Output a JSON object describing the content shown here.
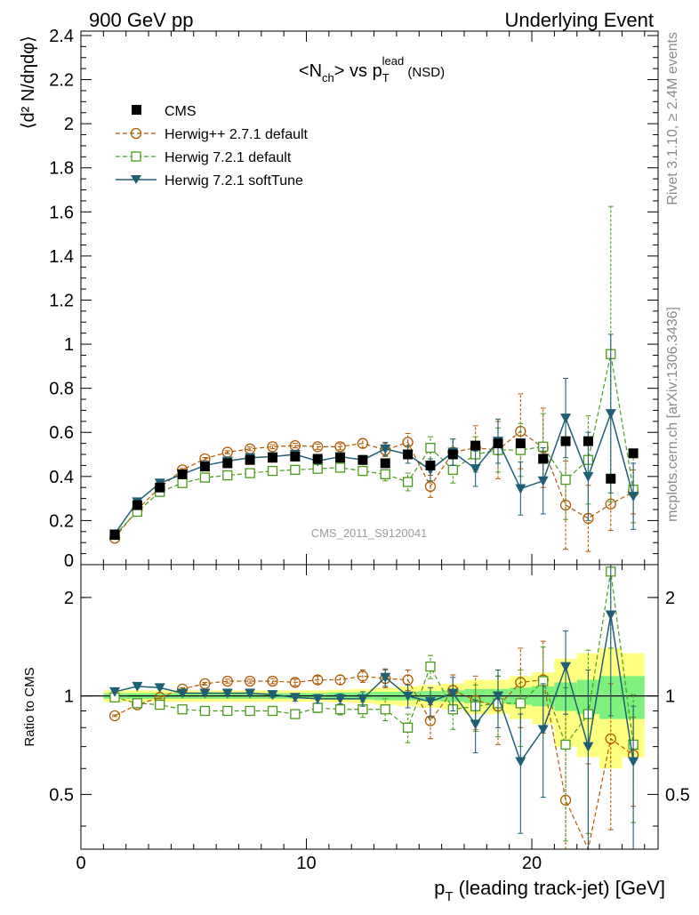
{
  "header": {
    "left": "900 GeV pp",
    "right": "Underlying Event"
  },
  "side_texts": {
    "rivet": "Rivet 3.1.10, ≥ 2.4M events",
    "mcplots": "mcplots.cern.ch [arXiv:1306.3436]"
  },
  "analysis_id": "CMS_2011_S9120041",
  "chart_data": [
    {
      "type": "scatter",
      "title": "<N_ch> vs p_T^lead (NSD)",
      "title_parts": {
        "a": "<N",
        "a_sub": "ch",
        "b": "> vs p",
        "b_sub": "T",
        "b_sup": "lead",
        "c": " (NSD)"
      },
      "ylabel": "⟨d² N/dηdφ⟩",
      "ylim": [
        0,
        2.42
      ],
      "xlim": [
        0,
        25.6
      ],
      "yticks": [
        0,
        0.2,
        0.4,
        0.6,
        0.8,
        1,
        1.2,
        1.4,
        1.6,
        1.8,
        2,
        2.2,
        2.4
      ],
      "ytick_labels": [
        "0",
        "0.2",
        "0.4",
        "0.6",
        "0.8",
        "1",
        "1.2",
        "1.4",
        "1.6",
        "1.8",
        "2",
        "2.2",
        "2.4"
      ],
      "legend_position": "top-left",
      "x": [
        1.5,
        2.5,
        3.5,
        4.5,
        5.5,
        6.5,
        7.5,
        8.5,
        9.5,
        10.5,
        11.5,
        12.5,
        13.5,
        14.5,
        15.5,
        16.5,
        17.5,
        18.5,
        19.5,
        20.5,
        21.5,
        22.5,
        23.5,
        24.5
      ],
      "series": [
        {
          "name": "CMS",
          "color": "#000000",
          "marker": "square",
          "values": [
            0.135,
            0.27,
            0.35,
            0.41,
            0.445,
            0.46,
            0.475,
            0.485,
            0.49,
            0.48,
            0.485,
            0.475,
            0.46,
            0.5,
            0.45,
            0.5,
            0.54,
            0.55,
            0.55,
            0.48,
            0.56,
            0.56,
            0.39,
            0.505
          ]
        },
        {
          "name": "Herwig++ 2.7.1 default",
          "color": "#b05a00",
          "marker": "open-circle",
          "dashed": true,
          "values": [
            0.12,
            0.25,
            0.35,
            0.43,
            0.48,
            0.51,
            0.525,
            0.535,
            0.54,
            0.535,
            0.535,
            0.55,
            0.52,
            0.555,
            0.355,
            0.51,
            0.53,
            0.52,
            0.605,
            0.53,
            0.27,
            0.21,
            0.275,
            0.33
          ],
          "errors": [
            0.005,
            0.005,
            0.005,
            0.006,
            0.006,
            0.007,
            0.008,
            0.009,
            0.01,
            0.012,
            0.014,
            0.02,
            0.03,
            0.04,
            0.05,
            0.06,
            0.1,
            0.13,
            0.17,
            0.18,
            0.2,
            0.15,
            0.12,
            0.1
          ]
        },
        {
          "name": "Herwig 7.2.1 default",
          "color": "#4a9a1a",
          "marker": "open-square",
          "dashed": true,
          "values": [
            0.135,
            0.24,
            0.33,
            0.37,
            0.395,
            0.405,
            0.415,
            0.425,
            0.43,
            0.435,
            0.44,
            0.425,
            0.41,
            0.375,
            0.53,
            0.43,
            0.5,
            0.52,
            0.52,
            0.535,
            0.385,
            0.475,
            0.955,
            0.34
          ],
          "errors": [
            0.005,
            0.005,
            0.005,
            0.006,
            0.006,
            0.007,
            0.008,
            0.009,
            0.01,
            0.012,
            0.014,
            0.02,
            0.03,
            0.04,
            0.05,
            0.06,
            0.08,
            0.1,
            0.12,
            0.15,
            0.18,
            0.2,
            0.67,
            0.15
          ]
        },
        {
          "name": "Herwig 7.2.1 softTune",
          "color": "#1f5f75",
          "marker": "down-triangle",
          "dashed": false,
          "values": [
            0.14,
            0.285,
            0.37,
            0.41,
            0.45,
            0.47,
            0.485,
            0.49,
            0.5,
            0.47,
            0.49,
            0.475,
            0.525,
            0.5,
            0.43,
            0.51,
            0.435,
            0.56,
            0.345,
            0.38,
            0.665,
            0.4,
            0.685,
            0.31
          ],
          "errors": [
            0.005,
            0.005,
            0.005,
            0.006,
            0.006,
            0.007,
            0.008,
            0.009,
            0.01,
            0.012,
            0.014,
            0.02,
            0.03,
            0.04,
            0.05,
            0.06,
            0.08,
            0.1,
            0.12,
            0.15,
            0.18,
            0.2,
            0.36,
            0.15
          ]
        }
      ]
    },
    {
      "type": "scatter",
      "ylabel": "Ratio to CMS",
      "xlabel": "p_T (leading track-jet) [GeV]",
      "xlabel_parts": {
        "a": "p",
        "sub": "T",
        "b": " (leading track-jet) [GeV]"
      },
      "xlim": [
        0,
        25.6
      ],
      "ylim": [
        0.34,
        2.52
      ],
      "xticks": [
        0,
        10,
        20
      ],
      "xtick_labels": [
        "0",
        "10",
        "20"
      ],
      "yticks": [
        0.5,
        1,
        2
      ],
      "ytick_labels": [
        "0.5",
        "1",
        "2"
      ],
      "reference_line": 1,
      "band_x": [
        1.5,
        2.5,
        3.5,
        4.5,
        5.5,
        6.5,
        7.5,
        8.5,
        9.5,
        10.5,
        11.5,
        12.5,
        13.5,
        14.5,
        15.5,
        16.5,
        17.5,
        18.5,
        19.5,
        20.5,
        21.5,
        22.5,
        23.5,
        24.5
      ],
      "band_inner_halfwidth": [
        0.02,
        0.02,
        0.02,
        0.02,
        0.02,
        0.02,
        0.02,
        0.02,
        0.02,
        0.02,
        0.025,
        0.025,
        0.03,
        0.03,
        0.035,
        0.04,
        0.05,
        0.05,
        0.06,
        0.07,
        0.1,
        0.12,
        0.15,
        0.15
      ],
      "band_outer_halfwidth": [
        0.04,
        0.04,
        0.04,
        0.04,
        0.04,
        0.04,
        0.04,
        0.04,
        0.04,
        0.04,
        0.045,
        0.05,
        0.06,
        0.07,
        0.08,
        0.09,
        0.12,
        0.12,
        0.15,
        0.18,
        0.3,
        0.35,
        0.4,
        0.35
      ],
      "series": [
        {
          "name": "Herwig++ 2.7.1 default",
          "color": "#b05a00",
          "marker": "open-circle",
          "dashed": true,
          "values": [
            0.87,
            0.94,
            0.99,
            1.05,
            1.09,
            1.11,
            1.11,
            1.11,
            1.1,
            1.12,
            1.12,
            1.15,
            1.13,
            1.12,
            0.84,
            1.04,
            0.97,
            0.93,
            1.1,
            1.12,
            0.48,
            0.32,
            0.74,
            0.66
          ],
          "errors": [
            0.005,
            0.01,
            0.01,
            0.01,
            0.01,
            0.015,
            0.015,
            0.02,
            0.025,
            0.03,
            0.035,
            0.05,
            0.07,
            0.08,
            0.1,
            0.12,
            0.18,
            0.22,
            0.3,
            0.35,
            0.4,
            0.3,
            0.35,
            0.2
          ]
        },
        {
          "name": "Herwig 7.2.1 default",
          "color": "#4a9a1a",
          "marker": "open-square",
          "dashed": true,
          "values": [
            0.99,
            0.95,
            0.94,
            0.91,
            0.9,
            0.9,
            0.9,
            0.9,
            0.88,
            0.92,
            0.91,
            0.91,
            0.91,
            0.8,
            1.23,
            0.91,
            0.93,
            0.95,
            0.95,
            1.11,
            0.71,
            0.88,
            2.4,
            0.71
          ],
          "errors": [
            0.005,
            0.01,
            0.01,
            0.01,
            0.01,
            0.015,
            0.015,
            0.02,
            0.025,
            0.03,
            0.035,
            0.05,
            0.07,
            0.08,
            0.1,
            0.12,
            0.15,
            0.2,
            0.25,
            0.3,
            0.35,
            0.5,
            1.0,
            0.3
          ]
        },
        {
          "name": "Herwig 7.2.1 softTune",
          "color": "#1f5f75",
          "marker": "down-triangle",
          "dashed": false,
          "values": [
            1.03,
            1.07,
            1.06,
            1.02,
            1.02,
            1.02,
            1.02,
            1.01,
            0.99,
            0.98,
            0.98,
            0.98,
            1.14,
            1.0,
            0.96,
            1.02,
            0.82,
            1.0,
            0.63,
            0.79,
            1.23,
            0.7,
            1.77,
            0.63
          ],
          "errors": [
            0.005,
            0.01,
            0.01,
            0.01,
            0.01,
            0.015,
            0.015,
            0.02,
            0.025,
            0.03,
            0.035,
            0.05,
            0.07,
            0.08,
            0.1,
            0.12,
            0.15,
            0.2,
            0.25,
            0.3,
            0.35,
            0.5,
            0.9,
            0.3
          ]
        }
      ]
    }
  ]
}
